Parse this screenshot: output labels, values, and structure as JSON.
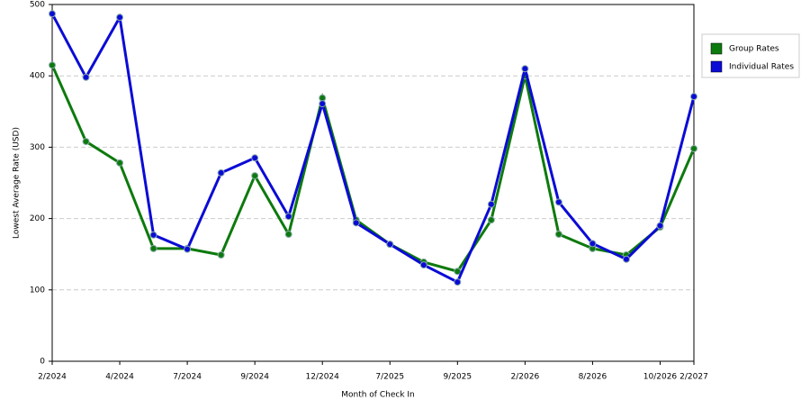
{
  "chart_data": {
    "type": "line",
    "x_label": "Month of Check In",
    "y_label": "Lowest Average Rate (USD)",
    "categories": [
      "2/2024",
      null,
      "4/2024",
      null,
      "7/2024",
      null,
      "9/2024",
      null,
      "12/2024",
      null,
      "7/2025",
      null,
      "9/2025",
      null,
      "2/2026",
      null,
      "8/2026",
      null,
      "10/2026",
      "2/2027"
    ],
    "series": [
      {
        "name": "Group Rates",
        "color": "#0d7a0d",
        "values": [
          415,
          308,
          278,
          158,
          158,
          149,
          260,
          178,
          369,
          198,
          164,
          139,
          126,
          198,
          400,
          178,
          158,
          149,
          188,
          298
        ]
      },
      {
        "name": "Individual Rates",
        "color": "#0b0bd6",
        "values": [
          487,
          398,
          482,
          177,
          157,
          264,
          285,
          203,
          361,
          194,
          164,
          135,
          111,
          220,
          410,
          223,
          165,
          143,
          190,
          371
        ]
      }
    ],
    "ylim": [
      0,
      500
    ],
    "yticks": [
      0,
      100,
      200,
      300,
      400,
      500
    ],
    "grid": true,
    "legend": "right"
  }
}
